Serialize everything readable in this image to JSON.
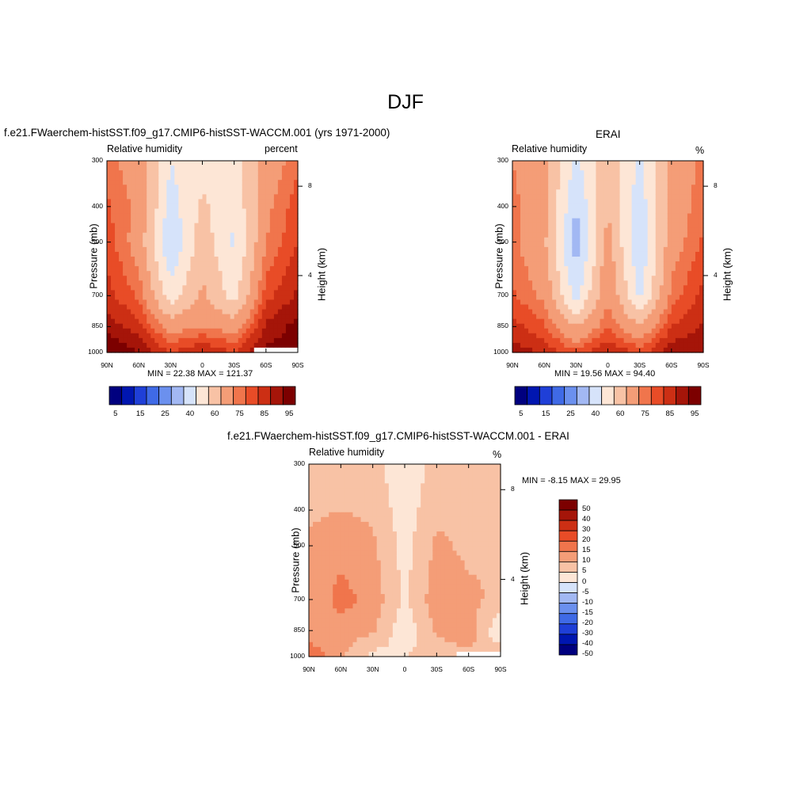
{
  "figure": {
    "title": "DJF"
  },
  "colors": {
    "abs_scale": [
      "#00007f",
      "#0016b0",
      "#1f3fd7",
      "#3f6ae6",
      "#6b90ee",
      "#a2b8f3",
      "#d6e3fa",
      "#fde6d6",
      "#f8c2a5",
      "#f49d77",
      "#f0754c",
      "#e84c27",
      "#cc2f14",
      "#a51509",
      "#7c0000"
    ],
    "diff_scale": [
      "#00007f",
      "#0016b0",
      "#1f3fd7",
      "#3f6ae6",
      "#6b90ee",
      "#a2b8f3",
      "#d6e3fa",
      "#fde6d6",
      "#f8c2a5",
      "#f49d77",
      "#f0754c",
      "#e84c27",
      "#cc2f14",
      "#a51509",
      "#7c0000"
    ]
  },
  "panels": [
    {
      "title": "f.e21.FWaerchem-histSST.f09_g17.CMIP6-histSST-WACCM.001 (yrs 1971-2000)",
      "variable": "Relative humidity",
      "units": "percent",
      "stats": "MIN =  22.38  MAX = 121.37",
      "y_axis_title": "Pressure (mb)",
      "right_axis_title": "Height (km)",
      "y_ticks": [
        "300",
        "400",
        "500",
        "700",
        "850",
        "1000"
      ],
      "right_ticks": [
        "8",
        "4"
      ],
      "x_ticks": [
        "90N",
        "60N",
        "30N",
        "0",
        "30S",
        "60S",
        "90S"
      ],
      "colorbar_labels": [
        "5",
        "15",
        "25",
        "40",
        "60",
        "75",
        "85",
        "95"
      ]
    },
    {
      "title": "ERAI",
      "variable": "Relative humidity",
      "units": "%",
      "stats": "MIN =  19.56  MAX =  94.40",
      "y_axis_title": "Pressure (mb)",
      "right_axis_title": "Height (km)",
      "y_ticks": [
        "300",
        "400",
        "500",
        "700",
        "850",
        "1000"
      ],
      "right_ticks": [
        "8",
        "4"
      ],
      "x_ticks": [
        "90N",
        "60N",
        "30N",
        "0",
        "30S",
        "60S",
        "90S"
      ],
      "colorbar_labels": [
        "5",
        "15",
        "25",
        "40",
        "60",
        "75",
        "85",
        "95"
      ]
    },
    {
      "title": "f.e21.FWaerchem-histSST.f09_g17.CMIP6-histSST-WACCM.001 - ERAI",
      "variable": "Relative humidity",
      "units": "%",
      "stats": "MIN =  -8.15  MAX =  29.95",
      "y_axis_title": "Pressure (mb)",
      "right_axis_title": "Height (km)",
      "y_ticks": [
        "300",
        "400",
        "500",
        "700",
        "850",
        "1000"
      ],
      "right_ticks": [
        "8",
        "4"
      ],
      "x_ticks": [
        "90N",
        "60N",
        "30N",
        "0",
        "30S",
        "60S",
        "90S"
      ],
      "colorbar_labels": [
        "50",
        "40",
        "30",
        "20",
        "15",
        "10",
        "5",
        "0",
        "-5",
        "-10",
        "-15",
        "-20",
        "-30",
        "-40",
        "-50"
      ]
    }
  ],
  "chart_data": [
    {
      "type": "heatmap",
      "title": "f.e21.FWaerchem-histSST.f09_g17.CMIP6-histSST-WACCM.001 (yrs 1971-2000)",
      "subtitle": "Relative humidity",
      "units": "percent",
      "xlabel": "",
      "ylabel": "Pressure (mb)",
      "right_ylabel": "Height (km)",
      "x": [
        "90N",
        "60N",
        "30N",
        "0",
        "30S",
        "60S",
        "90S"
      ],
      "y": [
        300,
        400,
        500,
        700,
        850,
        1000
      ],
      "log_y": true,
      "levels": [
        5,
        10,
        15,
        20,
        25,
        30,
        40,
        50,
        60,
        70,
        75,
        80,
        85,
        90,
        95
      ],
      "min": 22.38,
      "max": 121.37,
      "lat": [
        90,
        60,
        30,
        0,
        -30,
        -60,
        -90
      ],
      "values": [
        [
          72,
          66,
          40,
          45,
          45,
          64,
          74
        ],
        [
          76,
          68,
          36,
          52,
          42,
          68,
          78
        ],
        [
          78,
          66,
          30,
          56,
          38,
          70,
          80
        ],
        [
          82,
          74,
          44,
          62,
          46,
          78,
          86
        ],
        [
          88,
          82,
          66,
          70,
          66,
          86,
          92
        ],
        [
          96,
          90,
          80,
          86,
          80,
          92,
          null
        ]
      ]
    },
    {
      "type": "heatmap",
      "title": "ERAI",
      "subtitle": "Relative humidity",
      "units": "%",
      "xlabel": "",
      "ylabel": "Pressure (mb)",
      "right_ylabel": "Height (km)",
      "x": [
        "90N",
        "60N",
        "30N",
        "0",
        "30S",
        "60S",
        "90S"
      ],
      "y": [
        300,
        400,
        500,
        700,
        850,
        1000
      ],
      "log_y": true,
      "levels": [
        5,
        10,
        15,
        20,
        25,
        30,
        40,
        50,
        60,
        70,
        75,
        80,
        85,
        90,
        95
      ],
      "min": 19.56,
      "max": 94.4,
      "lat": [
        90,
        60,
        30,
        0,
        -30,
        -60,
        -90
      ],
      "values": [
        [
          70,
          62,
          38,
          56,
          38,
          62,
          72
        ],
        [
          72,
          64,
          30,
          60,
          34,
          64,
          74
        ],
        [
          72,
          62,
          24,
          64,
          30,
          66,
          76
        ],
        [
          76,
          68,
          36,
          70,
          38,
          72,
          82
        ],
        [
          82,
          76,
          60,
          74,
          62,
          80,
          86
        ],
        [
          88,
          84,
          76,
          86,
          78,
          88,
          90
        ]
      ]
    },
    {
      "type": "heatmap",
      "title": "f.e21.FWaerchem-histSST.f09_g17.CMIP6-histSST-WACCM.001 - ERAI",
      "subtitle": "Relative humidity",
      "units": "%",
      "xlabel": "",
      "ylabel": "Pressure (mb)",
      "right_ylabel": "Height (km)",
      "x": [
        "90N",
        "60N",
        "30N",
        "0",
        "30S",
        "60S",
        "90S"
      ],
      "y": [
        300,
        400,
        500,
        700,
        850,
        1000
      ],
      "log_y": true,
      "levels": [
        -50,
        -40,
        -30,
        -20,
        -15,
        -10,
        -5,
        0,
        5,
        10,
        15,
        20,
        30,
        40,
        50
      ],
      "min": -8.15,
      "max": 29.95,
      "lat": [
        90,
        60,
        30,
        0,
        -30,
        -60,
        -90
      ],
      "values": [
        [
          2,
          4,
          2,
          -4,
          2,
          2,
          3
        ],
        [
          4,
          5,
          4,
          -3,
          4,
          3,
          4
        ],
        [
          6,
          8,
          6,
          -2,
          6,
          4,
          5
        ],
        [
          6,
          12,
          8,
          -1,
          8,
          6,
          4
        ],
        [
          6,
          8,
          6,
          -4,
          6,
          8,
          -5
        ],
        [
          14,
          6,
          -2,
          0,
          2,
          4,
          null
        ]
      ]
    }
  ]
}
